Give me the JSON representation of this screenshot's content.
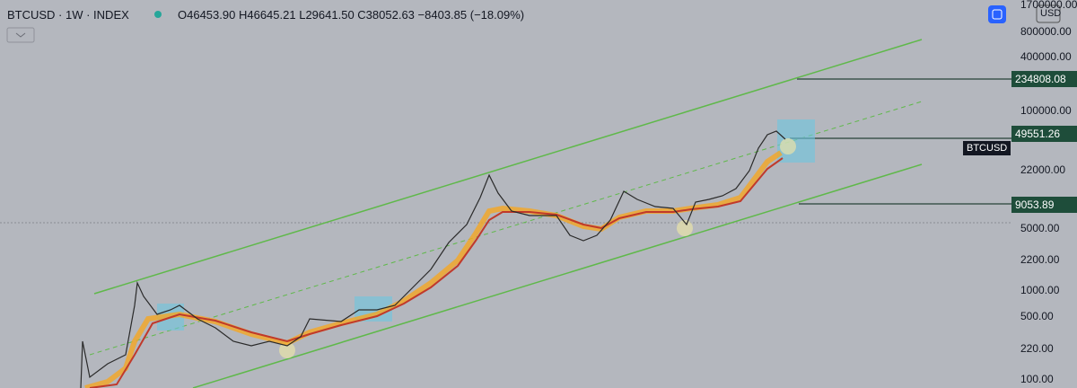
{
  "header": {
    "symbol": "BTCUSD · 1W · INDEX",
    "open": "O46453.90",
    "high": "H46645.21",
    "low": "L29641.50",
    "close": "C38052.63",
    "change": "−8403.85 (−18.09%)",
    "currency": "USD"
  },
  "price_axis": {
    "labels": [
      "1700000.00",
      "800000.00",
      "400000.00",
      "100000.00",
      "22000.00",
      "5000.00",
      "2200.00",
      "1000.00",
      "500.00",
      "220.00",
      "100.00"
    ],
    "tags": [
      "234808.08",
      "49551.26",
      "9053.89"
    ],
    "symbol_tag": "BTCUSD"
  }
}
